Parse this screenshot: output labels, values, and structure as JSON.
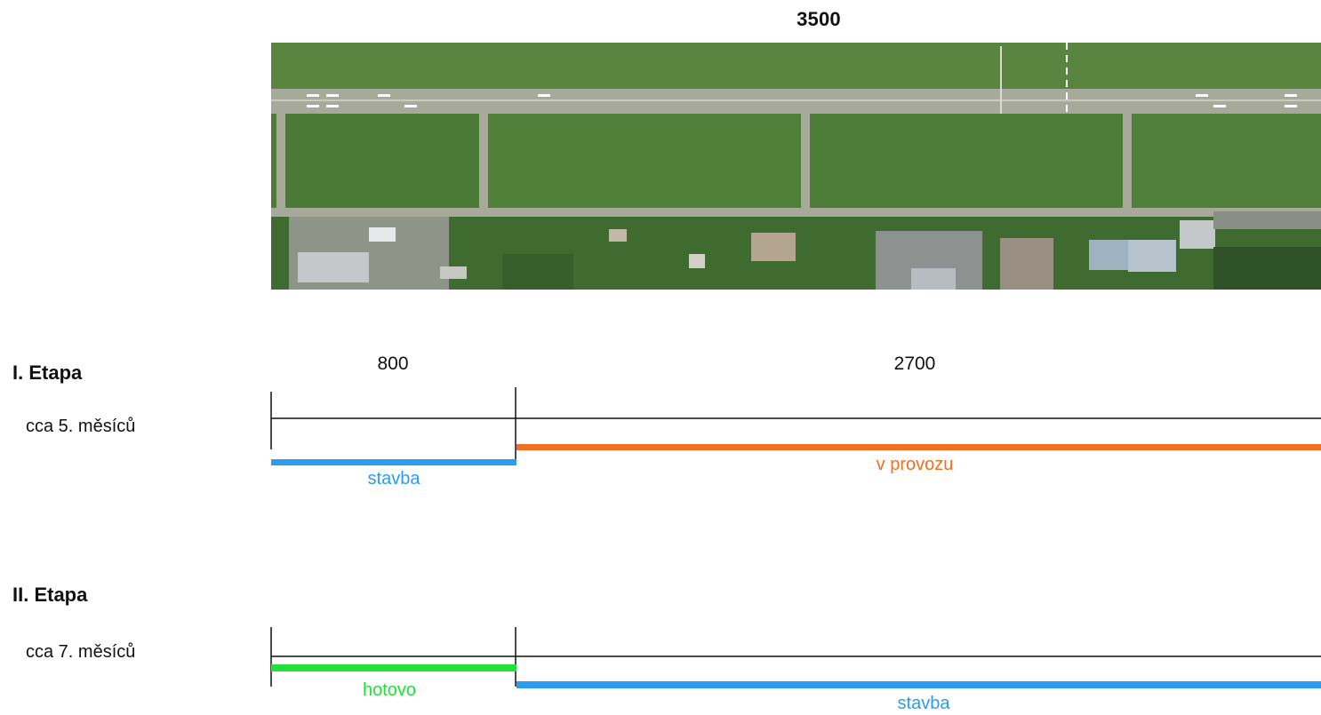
{
  "runway": {
    "total_length": "3500",
    "segment_1": "800",
    "segment_2": "2700"
  },
  "stage_1": {
    "title": "I. Etapa",
    "duration": "cca 5. měsíců",
    "bar_left_label": "stavba",
    "bar_right_label": "v provozu",
    "bar_left_color": "#2b9cf0",
    "bar_right_color": "#f26f1f"
  },
  "stage_2": {
    "title": "II. Etapa",
    "duration": "cca 7. měsíců",
    "bar_left_label": "hotovo",
    "bar_right_label": "stavba",
    "bar_left_color": "#22e03a",
    "bar_right_color": "#2b9cf0"
  }
}
